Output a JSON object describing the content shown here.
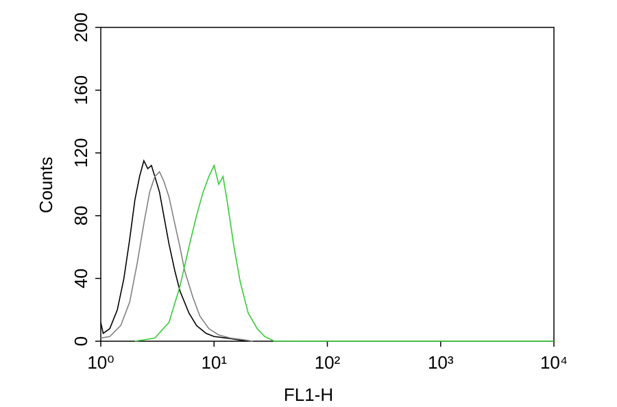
{
  "chart_data": {
    "type": "line",
    "x_label": "FL1-H",
    "y_label": "Counts",
    "xlog": true,
    "xlim": [
      1,
      10000
    ],
    "xticks": [
      {
        "value": 1,
        "label": "10⁰"
      },
      {
        "value": 10,
        "label": "10¹"
      },
      {
        "value": 100,
        "label": "10²"
      },
      {
        "value": 1000,
        "label": "10³"
      },
      {
        "value": 10000,
        "label": "10⁴"
      }
    ],
    "ylim": [
      0,
      200
    ],
    "yticks": [
      0,
      40,
      80,
      120,
      160,
      200
    ],
    "series": [
      {
        "color": "#000000",
        "x": [
          1.0,
          1.05,
          1.2,
          1.4,
          1.6,
          1.8,
          2.0,
          2.2,
          2.4,
          2.6,
          2.8,
          3.0,
          3.3,
          3.6,
          4.0,
          4.5,
          5.0,
          6.0,
          7.0,
          8.5,
          10,
          13,
          16,
          20
        ],
        "values": [
          12,
          5,
          8,
          20,
          40,
          65,
          90,
          105,
          115,
          110,
          112,
          105,
          95,
          80,
          62,
          45,
          32,
          18,
          10,
          5,
          3,
          2,
          1,
          0
        ]
      },
      {
        "color": "#808080",
        "x": [
          1.0,
          1.2,
          1.5,
          1.8,
          2.1,
          2.4,
          2.7,
          3.0,
          3.3,
          3.6,
          4.0,
          4.5,
          5.0,
          5.5,
          6.5,
          7.5,
          9,
          11,
          14,
          18,
          22
        ],
        "values": [
          2,
          3,
          10,
          25,
          50,
          75,
          95,
          105,
          108,
          102,
          92,
          75,
          60,
          45,
          28,
          16,
          8,
          4,
          2,
          1,
          0
        ]
      },
      {
        "color": "#33cc33",
        "x": [
          2.0,
          3.0,
          4.0,
          5.0,
          6.0,
          7.0,
          8.0,
          9.0,
          10,
          11,
          12,
          13,
          15,
          17,
          20,
          24,
          28,
          34,
          10000
        ],
        "values": [
          0,
          2,
          12,
          35,
          60,
          80,
          95,
          105,
          112,
          100,
          105,
          90,
          60,
          38,
          18,
          8,
          3,
          0,
          0
        ]
      }
    ]
  }
}
